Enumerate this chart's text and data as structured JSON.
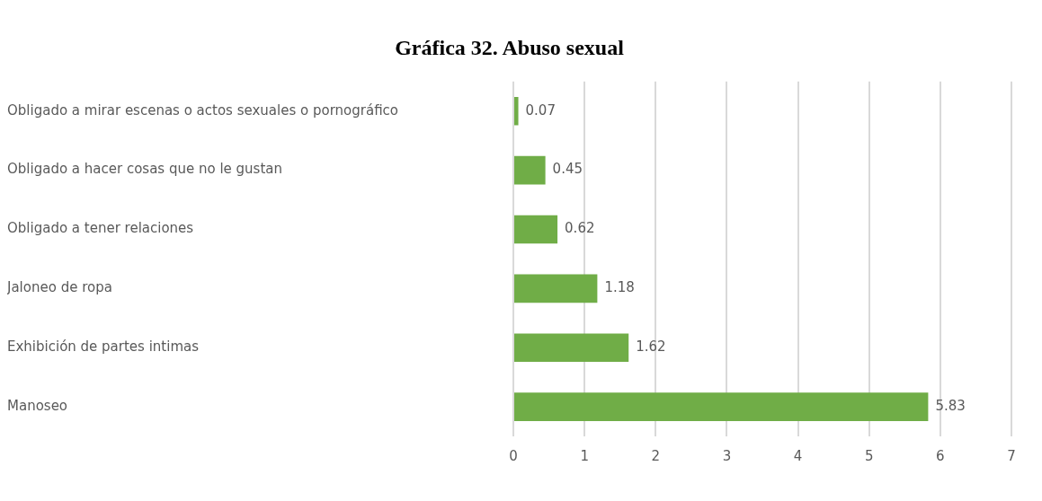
{
  "chart_data": {
    "type": "bar",
    "orientation": "horizontal",
    "title": "Gráfica 32. Abuso sexual",
    "categories": [
      "Obligado a mirar escenas o actos sexuales o pornográfico",
      "Obligado a hacer cosas que no le gustan",
      "Obligado a tener relaciones",
      "Jaloneo de ropa",
      "Exhibición de partes intimas",
      "Manoseo"
    ],
    "values": [
      0.07,
      0.45,
      0.62,
      1.18,
      1.62,
      5.83
    ],
    "color": "#70ad47",
    "xlim": [
      0,
      7
    ],
    "xticks": [
      0,
      1,
      2,
      3,
      4,
      5,
      6,
      7
    ],
    "grid": "x",
    "data_labels": true,
    "legend": false
  }
}
